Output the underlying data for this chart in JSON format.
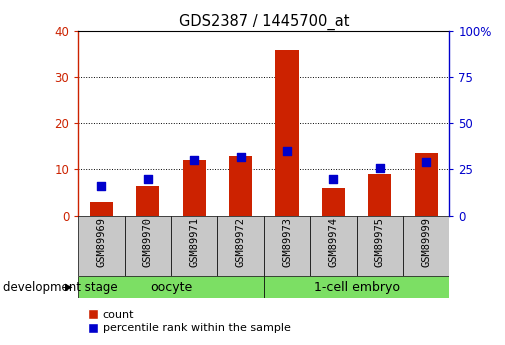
{
  "title": "GDS2387 / 1445700_at",
  "samples": [
    "GSM89969",
    "GSM89970",
    "GSM89971",
    "GSM89972",
    "GSM89973",
    "GSM89974",
    "GSM89975",
    "GSM89999"
  ],
  "counts": [
    3.0,
    6.5,
    12.0,
    13.0,
    36.0,
    6.0,
    9.0,
    13.5
  ],
  "percentile_ranks": [
    16,
    20,
    30,
    32,
    35,
    20,
    26,
    29
  ],
  "bar_color": "#CC2200",
  "dot_color": "#0000CC",
  "ylim_left": [
    0,
    40
  ],
  "ylim_right": [
    0,
    100
  ],
  "yticks_left": [
    0,
    10,
    20,
    30,
    40
  ],
  "yticks_right": [
    0,
    25,
    50,
    75,
    100
  ],
  "tick_color_left": "#CC2200",
  "tick_color_right": "#0000CC",
  "background_color": "#ffffff",
  "bar_width": 0.5,
  "dot_size": 28,
  "group_label": "development stage",
  "groups": [
    {
      "label": "oocyte",
      "color": "#7CDF64",
      "start": 0,
      "end": 3
    },
    {
      "label": "1-cell embryo",
      "color": "#7CDF64",
      "start": 4,
      "end": 7
    }
  ],
  "cat_bg_color": "#c8c8c8",
  "legend_items": [
    "count",
    "percentile rank within the sample"
  ]
}
